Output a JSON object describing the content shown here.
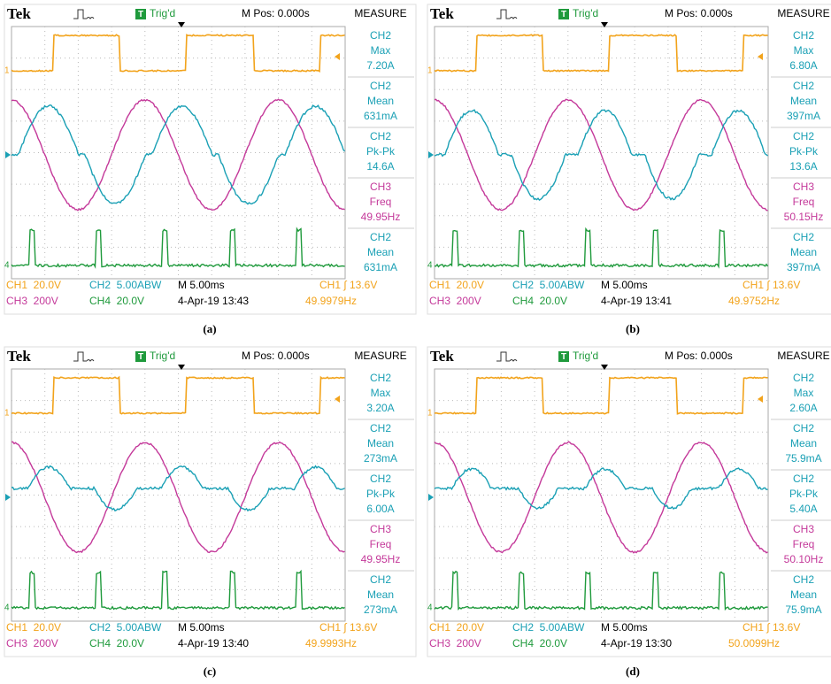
{
  "panels": [
    {
      "caption": "(a)",
      "header": {
        "brand": "Tek",
        "trigger_icon": "T",
        "trigger": "Trig'd",
        "position": "M Pos: 0.000s",
        "menu": "MEASURE"
      },
      "markers": [
        "1",
        "4"
      ],
      "measurements": [
        {
          "channel": "CH2",
          "label": "Max",
          "value": "7.20A",
          "color": "#1aa0b5"
        },
        {
          "channel": "CH2",
          "label": "Mean",
          "value": "631mA",
          "color": "#1aa0b5"
        },
        {
          "channel": "CH2",
          "label": "Pk-Pk",
          "value": "14.6A",
          "color": "#1aa0b5"
        },
        {
          "channel": "CH3",
          "label": "Freq",
          "value": "49.95Hz",
          "color": "#c4399a"
        },
        {
          "channel": "CH2",
          "label": "Mean",
          "value": "631mA",
          "color": "#1aa0b5"
        }
      ],
      "status": {
        "ch1": "CH1  20.0V",
        "ch2": "CH2  5.00ABW",
        "timebase": "M 5.00ms",
        "trigger_level": "CH1 ∫ 13.6V",
        "ch3": "CH3  200V",
        "ch4": "CH4  20.0V",
        "date": "4-Apr-19 13:43",
        "frequency": "49.9979Hz"
      }
    },
    {
      "caption": "(b)",
      "header": {
        "brand": "Tek",
        "trigger_icon": "T",
        "trigger": "Trig'd",
        "position": "M Pos: 0.000s",
        "menu": "MEASURE"
      },
      "markers": [
        "1",
        "4"
      ],
      "measurements": [
        {
          "channel": "CH2",
          "label": "Max",
          "value": "6.80A",
          "color": "#1aa0b5"
        },
        {
          "channel": "CH2",
          "label": "Mean",
          "value": "397mA",
          "color": "#1aa0b5"
        },
        {
          "channel": "CH2",
          "label": "Pk-Pk",
          "value": "13.6A",
          "color": "#1aa0b5"
        },
        {
          "channel": "CH3",
          "label": "Freq",
          "value": "50.15Hz",
          "color": "#c4399a"
        },
        {
          "channel": "CH2",
          "label": "Mean",
          "value": "397mA",
          "color": "#1aa0b5"
        }
      ],
      "status": {
        "ch1": "CH1  20.0V",
        "ch2": "CH2  5.00ABW",
        "timebase": "M 5.00ms",
        "trigger_level": "CH1 ∫ 13.6V",
        "ch3": "CH3  200V",
        "ch4": "CH4  20.0V",
        "date": "4-Apr-19 13:41",
        "frequency": "49.9752Hz"
      }
    },
    {
      "caption": "(c)",
      "header": {
        "brand": "Tek",
        "trigger_icon": "T",
        "trigger": "Trig'd",
        "position": "M Pos: 0.000s",
        "menu": "MEASURE"
      },
      "markers": [
        "1",
        "4"
      ],
      "measurements": [
        {
          "channel": "CH2",
          "label": "Max",
          "value": "3.20A",
          "color": "#1aa0b5"
        },
        {
          "channel": "CH2",
          "label": "Mean",
          "value": "273mA",
          "color": "#1aa0b5"
        },
        {
          "channel": "CH2",
          "label": "Pk-Pk",
          "value": "6.00A",
          "color": "#1aa0b5"
        },
        {
          "channel": "CH3",
          "label": "Freq",
          "value": "49.95Hz",
          "color": "#c4399a"
        },
        {
          "channel": "CH2",
          "label": "Mean",
          "value": "273mA",
          "color": "#1aa0b5"
        }
      ],
      "status": {
        "ch1": "CH1  20.0V",
        "ch2": "CH2  5.00ABW",
        "timebase": "M 5.00ms",
        "trigger_level": "CH1 ∫ 13.6V",
        "ch3": "CH3  200V",
        "ch4": "CH4  20.0V",
        "date": "4-Apr-19 13:40",
        "frequency": "49.9993Hz"
      }
    },
    {
      "caption": "(d)",
      "header": {
        "brand": "Tek",
        "trigger_icon": "T",
        "trigger": "Trig'd",
        "position": "M Pos: 0.000s",
        "menu": "MEASURE"
      },
      "markers": [
        "1",
        "4"
      ],
      "measurements": [
        {
          "channel": "CH2",
          "label": "Max",
          "value": "2.60A",
          "color": "#1aa0b5"
        },
        {
          "channel": "CH2",
          "label": "Mean",
          "value": "75.9mA",
          "color": "#1aa0b5"
        },
        {
          "channel": "CH2",
          "label": "Pk-Pk",
          "value": "5.40A",
          "color": "#1aa0b5"
        },
        {
          "channel": "CH3",
          "label": "Freq",
          "value": "50.10Hz",
          "color": "#c4399a"
        },
        {
          "channel": "CH2",
          "label": "Mean",
          "value": "75.9mA",
          "color": "#1aa0b5"
        }
      ],
      "status": {
        "ch1": "CH1  20.0V",
        "ch2": "CH2  5.00ABW",
        "timebase": "M 5.00ms",
        "trigger_level": "CH1 ∫ 13.6V",
        "ch3": "CH3  200V",
        "ch4": "CH4  20.0V",
        "date": "4-Apr-19 13:30",
        "frequency": "50.0099Hz"
      }
    }
  ]
}
